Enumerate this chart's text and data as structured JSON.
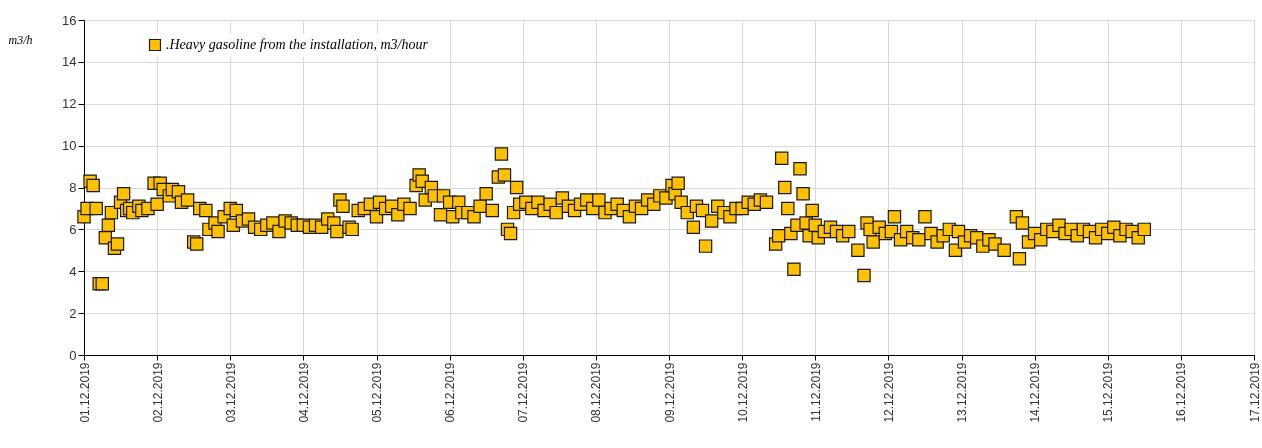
{
  "chart_data": {
    "type": "scatter",
    "ylabel": "m3/h",
    "marker": "square",
    "grid": true,
    "legend": "top left",
    "xlim": [
      "2019-12-01",
      "2019-12-17"
    ],
    "xticks": [
      {
        "value": "2019-12-01",
        "label": "01.12.2019"
      },
      {
        "value": "2019-12-02",
        "label": "02.12.2019"
      },
      {
        "value": "2019-12-03",
        "label": "03.12.2019"
      },
      {
        "value": "2019-12-04",
        "label": "04.12.2019"
      },
      {
        "value": "2019-12-05",
        "label": "05.12.2019"
      },
      {
        "value": "2019-12-06",
        "label": "06.12.2019"
      },
      {
        "value": "2019-12-07",
        "label": "07.12.2019"
      },
      {
        "value": "2019-12-08",
        "label": "08.12.2019"
      },
      {
        "value": "2019-12-09",
        "label": "09.12.2019"
      },
      {
        "value": "2019-12-10",
        "label": "10.12.2019"
      },
      {
        "value": "2019-12-11",
        "label": "11.12.2019"
      },
      {
        "value": "2019-12-12",
        "label": "12.12.2019"
      },
      {
        "value": "2019-12-13",
        "label": "13.12.2019"
      },
      {
        "value": "2019-12-14",
        "label": "14.12.2019"
      },
      {
        "value": "2019-12-15",
        "label": "15.12.2019"
      },
      {
        "value": "2019-12-16",
        "label": "16.12.2019"
      },
      {
        "value": "2019-12-17",
        "label": "17.12.2019"
      }
    ],
    "ylim": [
      0,
      16
    ],
    "yticks": [
      0,
      2,
      4,
      6,
      8,
      10,
      12,
      14,
      16
    ],
    "x": [
      "2019-12-01T00:00",
      "2019-12-01T01:00",
      "2019-12-01T02:00",
      "2019-12-01T03:00",
      "2019-12-01T04:00",
      "2019-12-01T05:00",
      "2019-12-01T06:00",
      "2019-12-01T07:00",
      "2019-12-01T08:00",
      "2019-12-01T09:00",
      "2019-12-01T10:00",
      "2019-12-01T11:00",
      "2019-12-01T12:00",
      "2019-12-01T13:00",
      "2019-12-01T14:00",
      "2019-12-01T15:00",
      "2019-12-01T16:00",
      "2019-12-01T18:00",
      "2019-12-01T19:00",
      "2019-12-01T21:00",
      "2019-12-01T23:00",
      "2019-12-02T00:00",
      "2019-12-02T01:00",
      "2019-12-02T02:00",
      "2019-12-02T04:00",
      "2019-12-02T05:00",
      "2019-12-02T07:00",
      "2019-12-02T08:00",
      "2019-12-02T10:00",
      "2019-12-02T12:00",
      "2019-12-02T13:00",
      "2019-12-02T14:00",
      "2019-12-02T16:00",
      "2019-12-02T17:00",
      "2019-12-02T19:00",
      "2019-12-02T20:00",
      "2019-12-02T22:00",
      "2019-12-03T00:00",
      "2019-12-03T01:00",
      "2019-12-03T02:00",
      "2019-12-03T04:00",
      "2019-12-03T06:00",
      "2019-12-03T08:00",
      "2019-12-03T10:00",
      "2019-12-03T12:00",
      "2019-12-03T14:00",
      "2019-12-03T16:00",
      "2019-12-03T18:00",
      "2019-12-03T20:00",
      "2019-12-03T22:00",
      "2019-12-04T00:00",
      "2019-12-04T02:00",
      "2019-12-04T04:00",
      "2019-12-04T06:00",
      "2019-12-04T08:00",
      "2019-12-04T10:00",
      "2019-12-04T11:00",
      "2019-12-04T12:00",
      "2019-12-04T13:00",
      "2019-12-04T15:00",
      "2019-12-04T16:00",
      "2019-12-04T18:00",
      "2019-12-04T20:00",
      "2019-12-04T22:00",
      "2019-12-05T00:00",
      "2019-12-05T01:00",
      "2019-12-05T03:00",
      "2019-12-05T05:00",
      "2019-12-05T07:00",
      "2019-12-05T09:00",
      "2019-12-05T11:00",
      "2019-12-05T13:00",
      "2019-12-05T14:00",
      "2019-12-05T15:00",
      "2019-12-05T16:00",
      "2019-12-05T18:00",
      "2019-12-05T19:00",
      "2019-12-05T21:00",
      "2019-12-05T22:00",
      "2019-12-06T00:00",
      "2019-12-06T01:00",
      "2019-12-06T03:00",
      "2019-12-06T04:00",
      "2019-12-06T06:00",
      "2019-12-06T08:00",
      "2019-12-06T10:00",
      "2019-12-06T12:00",
      "2019-12-06T14:00",
      "2019-12-06T16:00",
      "2019-12-06T17:00",
      "2019-12-06T18:00",
      "2019-12-06T19:00",
      "2019-12-06T20:00",
      "2019-12-06T21:00",
      "2019-12-06T22:00",
      "2019-12-06T23:00",
      "2019-12-07T01:00",
      "2019-12-07T03:00",
      "2019-12-07T05:00",
      "2019-12-07T07:00",
      "2019-12-07T09:00",
      "2019-12-07T11:00",
      "2019-12-07T13:00",
      "2019-12-07T15:00",
      "2019-12-07T17:00",
      "2019-12-07T19:00",
      "2019-12-07T21:00",
      "2019-12-07T23:00",
      "2019-12-08T01:00",
      "2019-12-08T03:00",
      "2019-12-08T05:00",
      "2019-12-08T07:00",
      "2019-12-08T09:00",
      "2019-12-08T11:00",
      "2019-12-08T13:00",
      "2019-12-08T15:00",
      "2019-12-08T17:00",
      "2019-12-08T19:00",
      "2019-12-08T21:00",
      "2019-12-08T23:00",
      "2019-12-09T01:00",
      "2019-12-09T02:00",
      "2019-12-09T03:00",
      "2019-12-09T04:00",
      "2019-12-09T06:00",
      "2019-12-09T08:00",
      "2019-12-09T09:00",
      "2019-12-09T11:00",
      "2019-12-09T12:00",
      "2019-12-09T14:00",
      "2019-12-09T16:00",
      "2019-12-09T18:00",
      "2019-12-09T20:00",
      "2019-12-09T22:00",
      "2019-12-10T00:00",
      "2019-12-10T02:00",
      "2019-12-10T04:00",
      "2019-12-10T06:00",
      "2019-12-10T08:00",
      "2019-12-10T11:00",
      "2019-12-10T12:00",
      "2019-12-10T13:00",
      "2019-12-10T14:00",
      "2019-12-10T15:00",
      "2019-12-10T16:00",
      "2019-12-10T17:00",
      "2019-12-10T18:00",
      "2019-12-10T19:00",
      "2019-12-10T20:00",
      "2019-12-10T21:00",
      "2019-12-10T22:00",
      "2019-12-10T23:00",
      "2019-12-11T00:00",
      "2019-12-11T01:00",
      "2019-12-11T03:00",
      "2019-12-11T05:00",
      "2019-12-11T07:00",
      "2019-12-11T09:00",
      "2019-12-11T11:00",
      "2019-12-11T14:00",
      "2019-12-11T16:00",
      "2019-12-11T17:00",
      "2019-12-11T18:00",
      "2019-12-11T19:00",
      "2019-12-11T21:00",
      "2019-12-11T23:00",
      "2019-12-12T01:00",
      "2019-12-12T02:00",
      "2019-12-12T04:00",
      "2019-12-12T06:00",
      "2019-12-12T08:00",
      "2019-12-12T10:00",
      "2019-12-12T12:00",
      "2019-12-12T14:00",
      "2019-12-12T16:00",
      "2019-12-12T18:00",
      "2019-12-12T20:00",
      "2019-12-12T22:00",
      "2019-12-12T23:00",
      "2019-12-13T01:00",
      "2019-12-13T03:00",
      "2019-12-13T05:00",
      "2019-12-13T07:00",
      "2019-12-13T09:00",
      "2019-12-13T11:00",
      "2019-12-13T14:00",
      "2019-12-13T18:00",
      "2019-12-13T19:00",
      "2019-12-13T20:00",
      "2019-12-13T22:00",
      "2019-12-14T00:00",
      "2019-12-14T02:00",
      "2019-12-14T04:00",
      "2019-12-14T06:00",
      "2019-12-14T08:00",
      "2019-12-14T10:00",
      "2019-12-14T12:00",
      "2019-12-14T14:00",
      "2019-12-14T16:00",
      "2019-12-14T18:00",
      "2019-12-14T20:00",
      "2019-12-14T22:00",
      "2019-12-15T00:00",
      "2019-12-15T02:00",
      "2019-12-15T04:00",
      "2019-12-15T06:00",
      "2019-12-15T08:00",
      "2019-12-15T10:00",
      "2019-12-15T12:00"
    ],
    "series": [
      {
        "name": ".Heavy gasoline from the installation, m3/hour",
        "color": "#ffc000",
        "values": [
          6.6,
          7.0,
          8.3,
          8.1,
          7.0,
          3.4,
          3.4,
          5.6,
          6.2,
          6.8,
          5.1,
          5.3,
          7.3,
          7.7,
          6.9,
          7.0,
          6.8,
          7.1,
          6.9,
          7.0,
          8.2,
          7.2,
          8.2,
          7.9,
          7.6,
          7.9,
          7.8,
          7.3,
          7.4,
          5.4,
          5.3,
          7.0,
          6.9,
          6.0,
          6.3,
          5.9,
          6.6,
          7.0,
          6.2,
          6.9,
          6.4,
          6.5,
          6.1,
          6.0,
          6.2,
          6.3,
          5.9,
          6.4,
          6.3,
          6.2,
          6.2,
          6.1,
          6.2,
          6.1,
          6.5,
          6.3,
          5.9,
          7.4,
          7.1,
          6.1,
          6.0,
          6.9,
          7.0,
          7.2,
          6.6,
          7.3,
          7.0,
          7.1,
          6.7,
          7.2,
          7.0,
          8.1,
          8.6,
          8.3,
          7.4,
          8.0,
          7.6,
          6.7,
          7.6,
          7.3,
          6.6,
          7.3,
          6.8,
          6.8,
          6.6,
          7.1,
          7.7,
          6.9,
          8.5,
          9.6,
          8.6,
          6.0,
          5.8,
          6.8,
          8.0,
          7.2,
          7.3,
          7.0,
          7.3,
          6.9,
          7.2,
          6.8,
          7.5,
          7.1,
          6.9,
          7.2,
          7.4,
          7.0,
          7.4,
          6.8,
          7.0,
          7.2,
          6.9,
          6.6,
          7.1,
          7.0,
          7.4,
          7.2,
          7.6,
          7.5,
          8.1,
          7.7,
          8.2,
          7.3,
          6.8,
          6.1,
          7.1,
          6.9,
          5.2,
          6.4,
          7.1,
          6.8,
          6.6,
          7.0,
          7.0,
          7.3,
          7.2,
          7.4,
          7.3,
          5.3,
          5.7,
          9.4,
          8.0,
          7.0,
          5.8,
          4.1,
          6.2,
          8.9,
          7.7,
          6.3,
          5.7,
          6.9,
          6.2,
          5.6,
          5.9,
          6.1,
          5.9,
          5.7,
          5.9,
          5.0,
          3.8,
          6.3,
          6.0,
          5.4,
          6.1,
          5.8,
          5.9,
          6.6,
          5.5,
          5.9,
          5.6,
          5.5,
          6.6,
          5.8,
          5.4,
          5.7,
          6.0,
          5.0,
          5.9,
          5.4,
          5.7,
          5.6,
          5.2,
          5.5,
          5.3,
          5.0,
          6.6,
          4.6,
          6.3,
          5.4,
          5.8,
          5.5,
          6.0,
          5.9,
          6.2,
          5.8,
          6.0,
          5.7,
          6.0,
          5.9,
          5.6,
          6.0,
          5.8,
          6.1,
          5.7,
          6.0,
          5.9,
          5.6,
          6.0
        ]
      }
    ]
  }
}
